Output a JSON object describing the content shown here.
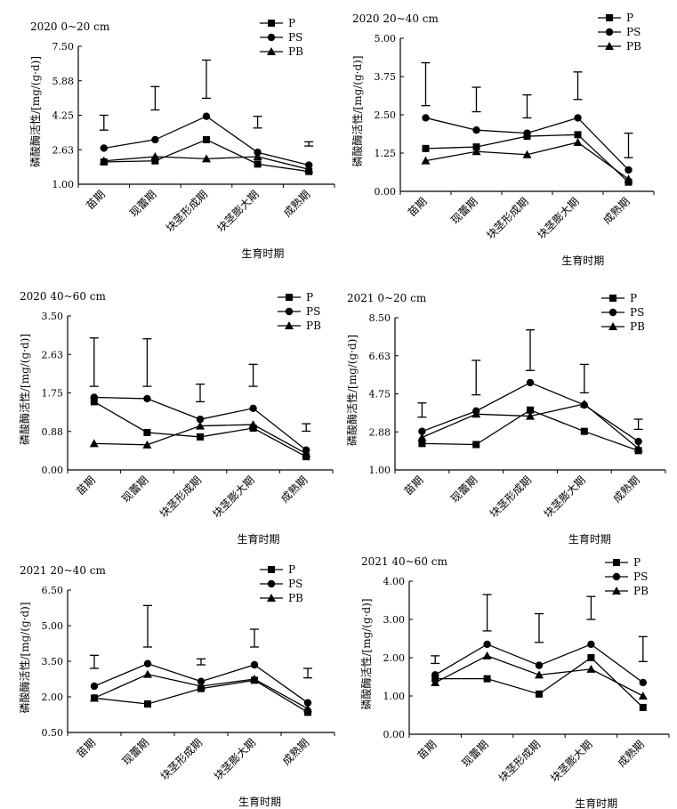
{
  "chart_data": [
    {
      "type": "line",
      "title": "2020  0~20 cm",
      "xlabel": "生育时期",
      "ylabel": "磷酸酶活性/[mg/(g·d)]",
      "categories": [
        "苗期",
        "现蕾期",
        "块茎形成期",
        "块茎膨大期",
        "成熟期"
      ],
      "yticks": [
        "1.00",
        "2.63",
        "4.25",
        "5.88",
        "7.50"
      ],
      "ylim": [
        1.0,
        7.5
      ],
      "legend": "top-right",
      "series": [
        {
          "name": "P",
          "marker": "square",
          "values": [
            2.05,
            2.1,
            3.1,
            1.95,
            1.6
          ]
        },
        {
          "name": "PS",
          "marker": "circle",
          "values": [
            2.7,
            3.1,
            4.2,
            2.5,
            1.9
          ]
        },
        {
          "name": "PB",
          "marker": "triangle",
          "values": [
            2.1,
            2.3,
            2.2,
            2.3,
            1.7
          ]
        }
      ],
      "error_bars": [
        {
          "low": 3.55,
          "high": 4.25
        },
        {
          "low": 4.5,
          "high": 5.6
        },
        {
          "low": 5.05,
          "high": 6.85
        },
        {
          "low": 3.65,
          "high": 4.2
        },
        {
          "low": 2.8,
          "high": 3.0
        }
      ]
    },
    {
      "type": "line",
      "title": "2020   20~40 cm",
      "xlabel": "生育时期",
      "ylabel": "磷酸酶活性/[mg/(g·d)]",
      "categories": [
        "苗期",
        "现蕾期",
        "块茎形成期",
        "块茎膨大期",
        "成熟期"
      ],
      "yticks": [
        "0.00",
        "1.25",
        "2.50",
        "3.75",
        "5.00"
      ],
      "ylim": [
        0.0,
        5.0
      ],
      "legend": "top-right",
      "series": [
        {
          "name": "P",
          "marker": "square",
          "values": [
            1.4,
            1.45,
            1.8,
            1.85,
            0.3
          ]
        },
        {
          "name": "PS",
          "marker": "circle",
          "values": [
            2.4,
            2.0,
            1.9,
            2.4,
            0.7
          ]
        },
        {
          "name": "PB",
          "marker": "triangle",
          "values": [
            1.0,
            1.3,
            1.2,
            1.6,
            0.4
          ]
        }
      ],
      "error_bars": [
        {
          "low": 2.8,
          "high": 4.2
        },
        {
          "low": 2.6,
          "high": 3.4
        },
        {
          "low": 2.4,
          "high": 3.15
        },
        {
          "low": 3.0,
          "high": 3.9
        },
        {
          "low": 1.1,
          "high": 1.9
        }
      ]
    },
    {
      "type": "line",
      "title": "2020  40~60 cm",
      "xlabel": "生育时期",
      "ylabel": "磷酸酶活性/[mg/(g·d)]",
      "categories": [
        "苗期",
        "现蕾期",
        "块茎形成期",
        "块茎膨大期",
        "成熟期"
      ],
      "yticks": [
        "0.00",
        "0.88",
        "1.75",
        "2.63",
        "3.50"
      ],
      "ylim": [
        0.0,
        3.5
      ],
      "legend": "top-right",
      "series": [
        {
          "name": "P",
          "marker": "square",
          "values": [
            1.55,
            0.85,
            0.75,
            0.95,
            0.3
          ]
        },
        {
          "name": "PS",
          "marker": "circle",
          "values": [
            1.65,
            1.62,
            1.15,
            1.4,
            0.45
          ]
        },
        {
          "name": "PB",
          "marker": "triangle",
          "values": [
            0.6,
            0.57,
            1.0,
            1.03,
            0.37
          ]
        }
      ],
      "error_bars": [
        {
          "low": 1.9,
          "high": 3.0
        },
        {
          "low": 1.9,
          "high": 2.98
        },
        {
          "low": 1.55,
          "high": 1.95
        },
        {
          "low": 1.9,
          "high": 2.4
        },
        {
          "low": 0.88,
          "high": 1.05
        }
      ]
    },
    {
      "type": "line",
      "title": "2021   0~20 cm",
      "xlabel": "生育时期",
      "ylabel": "磷酸酶活性/[mg/(g·d)]",
      "categories": [
        "苗期",
        "现蕾期",
        "块茎形成期",
        "块茎膨大期",
        "成熟期"
      ],
      "yticks": [
        "1.00",
        "2.88",
        "4.75",
        "6.63",
        "8.50"
      ],
      "ylim": [
        1.0,
        8.5
      ],
      "legend": "top-right",
      "series": [
        {
          "name": "P",
          "marker": "square",
          "values": [
            2.3,
            2.25,
            3.95,
            2.9,
            1.95
          ]
        },
        {
          "name": "PS",
          "marker": "circle",
          "values": [
            2.9,
            3.9,
            5.3,
            4.2,
            2.4
          ]
        },
        {
          "name": "PB",
          "marker": "triangle",
          "values": [
            2.6,
            3.75,
            3.65,
            4.25,
            2.05
          ]
        }
      ],
      "error_bars": [
        {
          "low": 3.6,
          "high": 4.3
        },
        {
          "low": 4.7,
          "high": 6.4
        },
        {
          "low": 5.9,
          "high": 7.9
        },
        {
          "low": 4.8,
          "high": 6.2
        },
        {
          "low": 3.0,
          "high": 3.5
        }
      ]
    },
    {
      "type": "line",
      "title": "2021    20~40 cm",
      "xlabel": "生育时期",
      "ylabel": "磷酸酶活性/[mg/(g·d)]",
      "categories": [
        "苗期",
        "现蕾期",
        "块茎形成期",
        "块茎膨大期",
        "成熟期"
      ],
      "yticks": [
        "0.50",
        "2.00",
        "3.50",
        "5.00",
        "6.50"
      ],
      "ylim": [
        0.5,
        6.5
      ],
      "legend": "top-right",
      "series": [
        {
          "name": "P",
          "marker": "square",
          "values": [
            1.95,
            1.7,
            2.35,
            2.7,
            1.35
          ]
        },
        {
          "name": "PS",
          "marker": "circle",
          "values": [
            2.45,
            3.4,
            2.65,
            3.35,
            1.75
          ]
        },
        {
          "name": "PB",
          "marker": "triangle",
          "values": [
            1.95,
            2.95,
            2.45,
            2.75,
            1.5
          ]
        }
      ],
      "error_bars": [
        {
          "low": 3.2,
          "high": 3.75
        },
        {
          "low": 4.1,
          "high": 5.85
        },
        {
          "low": 3.35,
          "high": 3.6
        },
        {
          "low": 4.1,
          "high": 4.85
        },
        {
          "low": 2.8,
          "high": 3.2
        }
      ]
    },
    {
      "type": "line",
      "title": "2021    40~60 cm",
      "xlabel": "生育时期",
      "ylabel": "磷酸酶活性/[mg/(g·d)]",
      "categories": [
        "苗期",
        "现蕾期",
        "块茎形成期",
        "块茎膨大期",
        "成熟期"
      ],
      "yticks": [
        "0.00",
        "1.00",
        "2.00",
        "3.00",
        "4.00"
      ],
      "ylim": [
        0.0,
        4.0
      ],
      "legend": "top-right",
      "series": [
        {
          "name": "P",
          "marker": "square",
          "values": [
            1.45,
            1.45,
            1.05,
            2.0,
            0.7
          ]
        },
        {
          "name": "PS",
          "marker": "circle",
          "values": [
            1.55,
            2.35,
            1.8,
            2.35,
            1.35
          ]
        },
        {
          "name": "PB",
          "marker": "triangle",
          "values": [
            1.35,
            2.05,
            1.55,
            1.7,
            1.0
          ]
        }
      ],
      "error_bars": [
        {
          "low": 1.85,
          "high": 2.05
        },
        {
          "low": 2.7,
          "high": 3.65
        },
        {
          "low": 2.4,
          "high": 3.15
        },
        {
          "low": 3.0,
          "high": 3.6
        },
        {
          "low": 1.9,
          "high": 2.55
        }
      ]
    }
  ]
}
